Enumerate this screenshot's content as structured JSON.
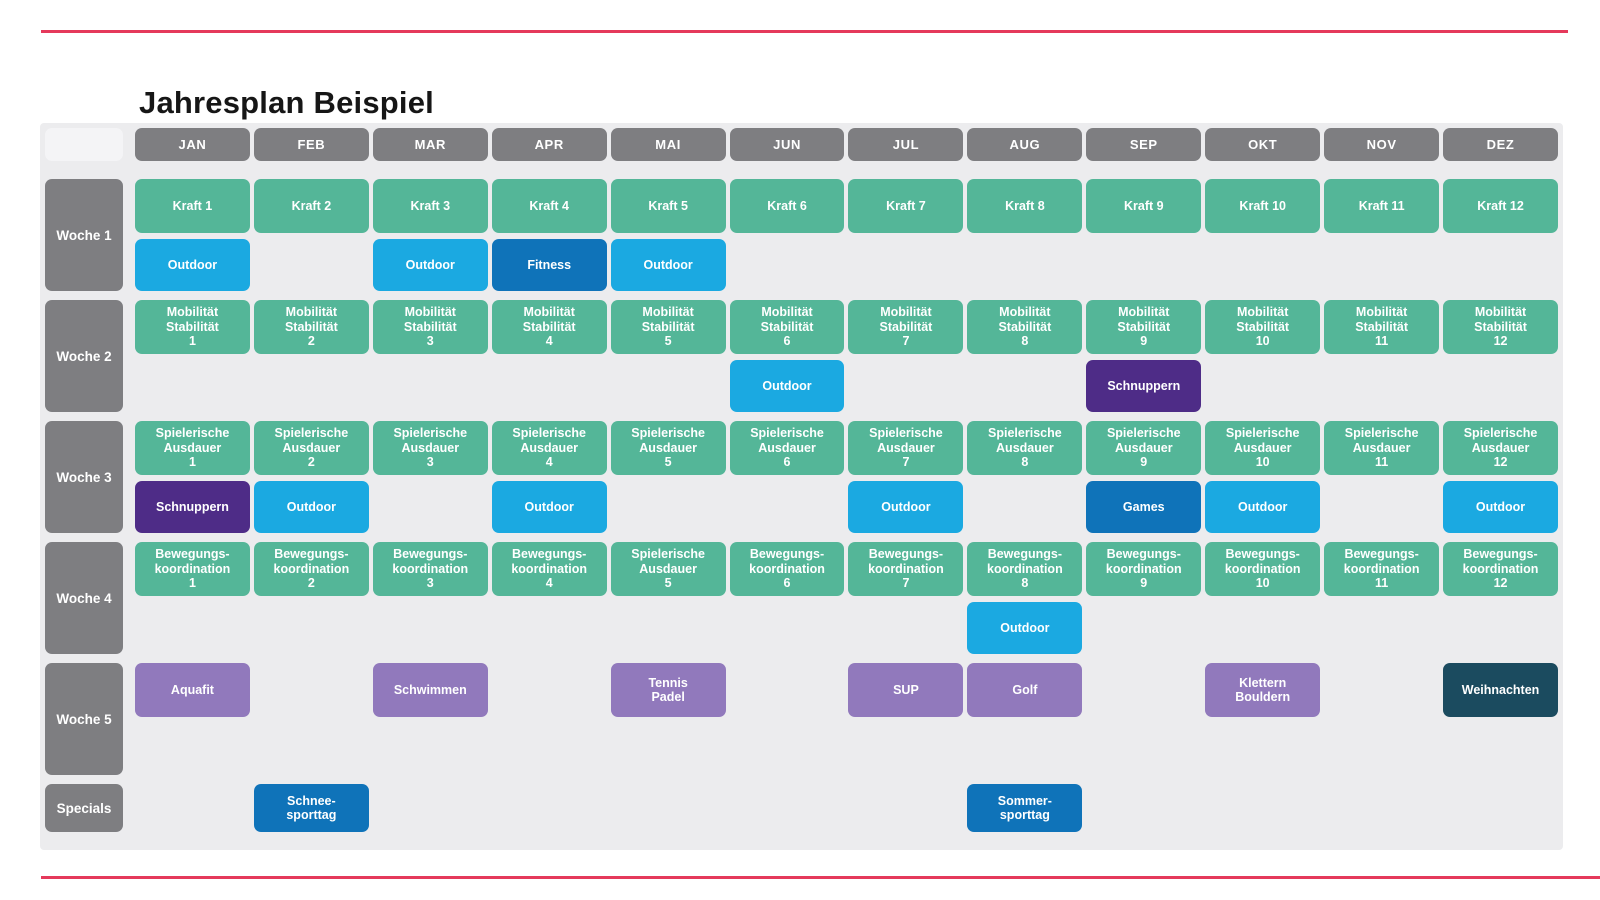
{
  "page": {
    "title": "Jahresplan Beispiel"
  },
  "palette": {
    "green": "#54b698",
    "blue": "#1ba9e1",
    "darkblue": "#0f73b9",
    "purple": "#4e2c87",
    "lavender": "#9179bc",
    "darkteal": "#1b4b5f",
    "gray": "#7e7e81",
    "table_bg": "#ececee",
    "corner_bg": "#f4f4f6",
    "rule_red": "#e5395b"
  },
  "months": [
    "JAN",
    "FEB",
    "MAR",
    "APR",
    "MAI",
    "JUN",
    "JUL",
    "AUG",
    "SEP",
    "OKT",
    "NOV",
    "DEZ"
  ],
  "weeks": [
    {
      "label": "Woche 1",
      "kind": "week",
      "main": [
        {
          "col": 0,
          "text": "Kraft 1",
          "color": "green"
        },
        {
          "col": 1,
          "text": "Kraft 2",
          "color": "green"
        },
        {
          "col": 2,
          "text": "Kraft 3",
          "color": "green"
        },
        {
          "col": 3,
          "text": "Kraft 4",
          "color": "green"
        },
        {
          "col": 4,
          "text": "Kraft 5",
          "color": "green"
        },
        {
          "col": 5,
          "text": "Kraft 6",
          "color": "green"
        },
        {
          "col": 6,
          "text": "Kraft 7",
          "color": "green"
        },
        {
          "col": 7,
          "text": "Kraft 8",
          "color": "green"
        },
        {
          "col": 8,
          "text": "Kraft 9",
          "color": "green"
        },
        {
          "col": 9,
          "text": "Kraft 10",
          "color": "green"
        },
        {
          "col": 10,
          "text": "Kraft 11",
          "color": "green"
        },
        {
          "col": 11,
          "text": "Kraft 12",
          "color": "green"
        }
      ],
      "sub": [
        {
          "col": 0,
          "text": "Outdoor",
          "color": "blue"
        },
        {
          "col": 2,
          "text": "Outdoor",
          "color": "blue"
        },
        {
          "col": 3,
          "text": "Fitness",
          "color": "darkblue"
        },
        {
          "col": 4,
          "text": "Outdoor",
          "color": "blue"
        }
      ]
    },
    {
      "label": "Woche 2",
      "kind": "week",
      "main": [
        {
          "col": 0,
          "text": "Mobilität\nStabilität\n1",
          "color": "green"
        },
        {
          "col": 1,
          "text": "Mobilität\nStabilität\n2",
          "color": "green"
        },
        {
          "col": 2,
          "text": "Mobilität\nStabilität\n3",
          "color": "green"
        },
        {
          "col": 3,
          "text": "Mobilität\nStabilität\n4",
          "color": "green"
        },
        {
          "col": 4,
          "text": "Mobilität\nStabilität\n5",
          "color": "green"
        },
        {
          "col": 5,
          "text": "Mobilität\nStabilität\n6",
          "color": "green"
        },
        {
          "col": 6,
          "text": "Mobilität\nStabilität\n7",
          "color": "green"
        },
        {
          "col": 7,
          "text": "Mobilität\nStabilität\n8",
          "color": "green"
        },
        {
          "col": 8,
          "text": "Mobilität\nStabilität\n9",
          "color": "green"
        },
        {
          "col": 9,
          "text": "Mobilität\nStabilität\n10",
          "color": "green"
        },
        {
          "col": 10,
          "text": "Mobilität\nStabilität\n11",
          "color": "green"
        },
        {
          "col": 11,
          "text": "Mobilität\nStabilität\n12",
          "color": "green"
        }
      ],
      "sub": [
        {
          "col": 5,
          "text": "Outdoor",
          "color": "blue"
        },
        {
          "col": 8,
          "text": "Schnuppern",
          "color": "purple"
        }
      ]
    },
    {
      "label": "Woche 3",
      "kind": "week",
      "main": [
        {
          "col": 0,
          "text": "Spielerische\nAusdauer\n1",
          "color": "green"
        },
        {
          "col": 1,
          "text": "Spielerische\nAusdauer\n2",
          "color": "green"
        },
        {
          "col": 2,
          "text": "Spielerische\nAusdauer\n3",
          "color": "green"
        },
        {
          "col": 3,
          "text": "Spielerische\nAusdauer\n4",
          "color": "green"
        },
        {
          "col": 4,
          "text": "Spielerische\nAusdauer\n5",
          "color": "green"
        },
        {
          "col": 5,
          "text": "Spielerische\nAusdauer\n6",
          "color": "green"
        },
        {
          "col": 6,
          "text": "Spielerische\nAusdauer\n7",
          "color": "green"
        },
        {
          "col": 7,
          "text": "Spielerische\nAusdauer\n8",
          "color": "green"
        },
        {
          "col": 8,
          "text": "Spielerische\nAusdauer\n9",
          "color": "green"
        },
        {
          "col": 9,
          "text": "Spielerische\nAusdauer\n10",
          "color": "green"
        },
        {
          "col": 10,
          "text": "Spielerische\nAusdauer\n11",
          "color": "green"
        },
        {
          "col": 11,
          "text": "Spielerische\nAusdauer\n12",
          "color": "green"
        }
      ],
      "sub": [
        {
          "col": 0,
          "text": "Schnuppern",
          "color": "purple"
        },
        {
          "col": 1,
          "text": "Outdoor",
          "color": "blue"
        },
        {
          "col": 3,
          "text": "Outdoor",
          "color": "blue"
        },
        {
          "col": 6,
          "text": "Outdoor",
          "color": "blue"
        },
        {
          "col": 8,
          "text": "Games",
          "color": "darkblue"
        },
        {
          "col": 9,
          "text": "Outdoor",
          "color": "blue"
        },
        {
          "col": 11,
          "text": "Outdoor",
          "color": "blue"
        }
      ]
    },
    {
      "label": "Woche 4",
      "kind": "week",
      "main": [
        {
          "col": 0,
          "text": "Bewegungs-\nkoordination\n1",
          "color": "green"
        },
        {
          "col": 1,
          "text": "Bewegungs-\nkoordination\n2",
          "color": "green"
        },
        {
          "col": 2,
          "text": "Bewegungs-\nkoordination\n3",
          "color": "green"
        },
        {
          "col": 3,
          "text": "Bewegungs-\nkoordination\n4",
          "color": "green"
        },
        {
          "col": 4,
          "text": "Spielerische\nAusdauer\n5",
          "color": "green"
        },
        {
          "col": 5,
          "text": "Bewegungs-\nkoordination\n6",
          "color": "green"
        },
        {
          "col": 6,
          "text": "Bewegungs-\nkoordination\n7",
          "color": "green"
        },
        {
          "col": 7,
          "text": "Bewegungs-\nkoordination\n8",
          "color": "green"
        },
        {
          "col": 8,
          "text": "Bewegungs-\nkoordination\n9",
          "color": "green"
        },
        {
          "col": 9,
          "text": "Bewegungs-\nkoordination\n10",
          "color": "green"
        },
        {
          "col": 10,
          "text": "Bewegungs-\nkoordination\n11",
          "color": "green"
        },
        {
          "col": 11,
          "text": "Bewegungs-\nkoordination\n12",
          "color": "green"
        }
      ],
      "sub": [
        {
          "col": 7,
          "text": "Outdoor",
          "color": "blue"
        }
      ]
    },
    {
      "label": "Woche 5",
      "kind": "week",
      "main": [
        {
          "col": 0,
          "text": "Aquafit",
          "color": "lavender"
        },
        {
          "col": 2,
          "text": "Schwimmen",
          "color": "lavender"
        },
        {
          "col": 4,
          "text": "Tennis\nPadel",
          "color": "lavender"
        },
        {
          "col": 6,
          "text": "SUP",
          "color": "lavender"
        },
        {
          "col": 7,
          "text": "Golf",
          "color": "lavender"
        },
        {
          "col": 9,
          "text": "Klettern\nBouldern",
          "color": "lavender"
        },
        {
          "col": 11,
          "text": "Weihnachten",
          "color": "darkteal"
        }
      ],
      "sub": []
    },
    {
      "label": "Specials",
      "kind": "specials",
      "main": [
        {
          "col": 1,
          "text": "Schnee-\nsporttag",
          "color": "darkblue"
        },
        {
          "col": 7,
          "text": "Sommer-\nsporttag",
          "color": "darkblue"
        }
      ],
      "sub": []
    }
  ]
}
